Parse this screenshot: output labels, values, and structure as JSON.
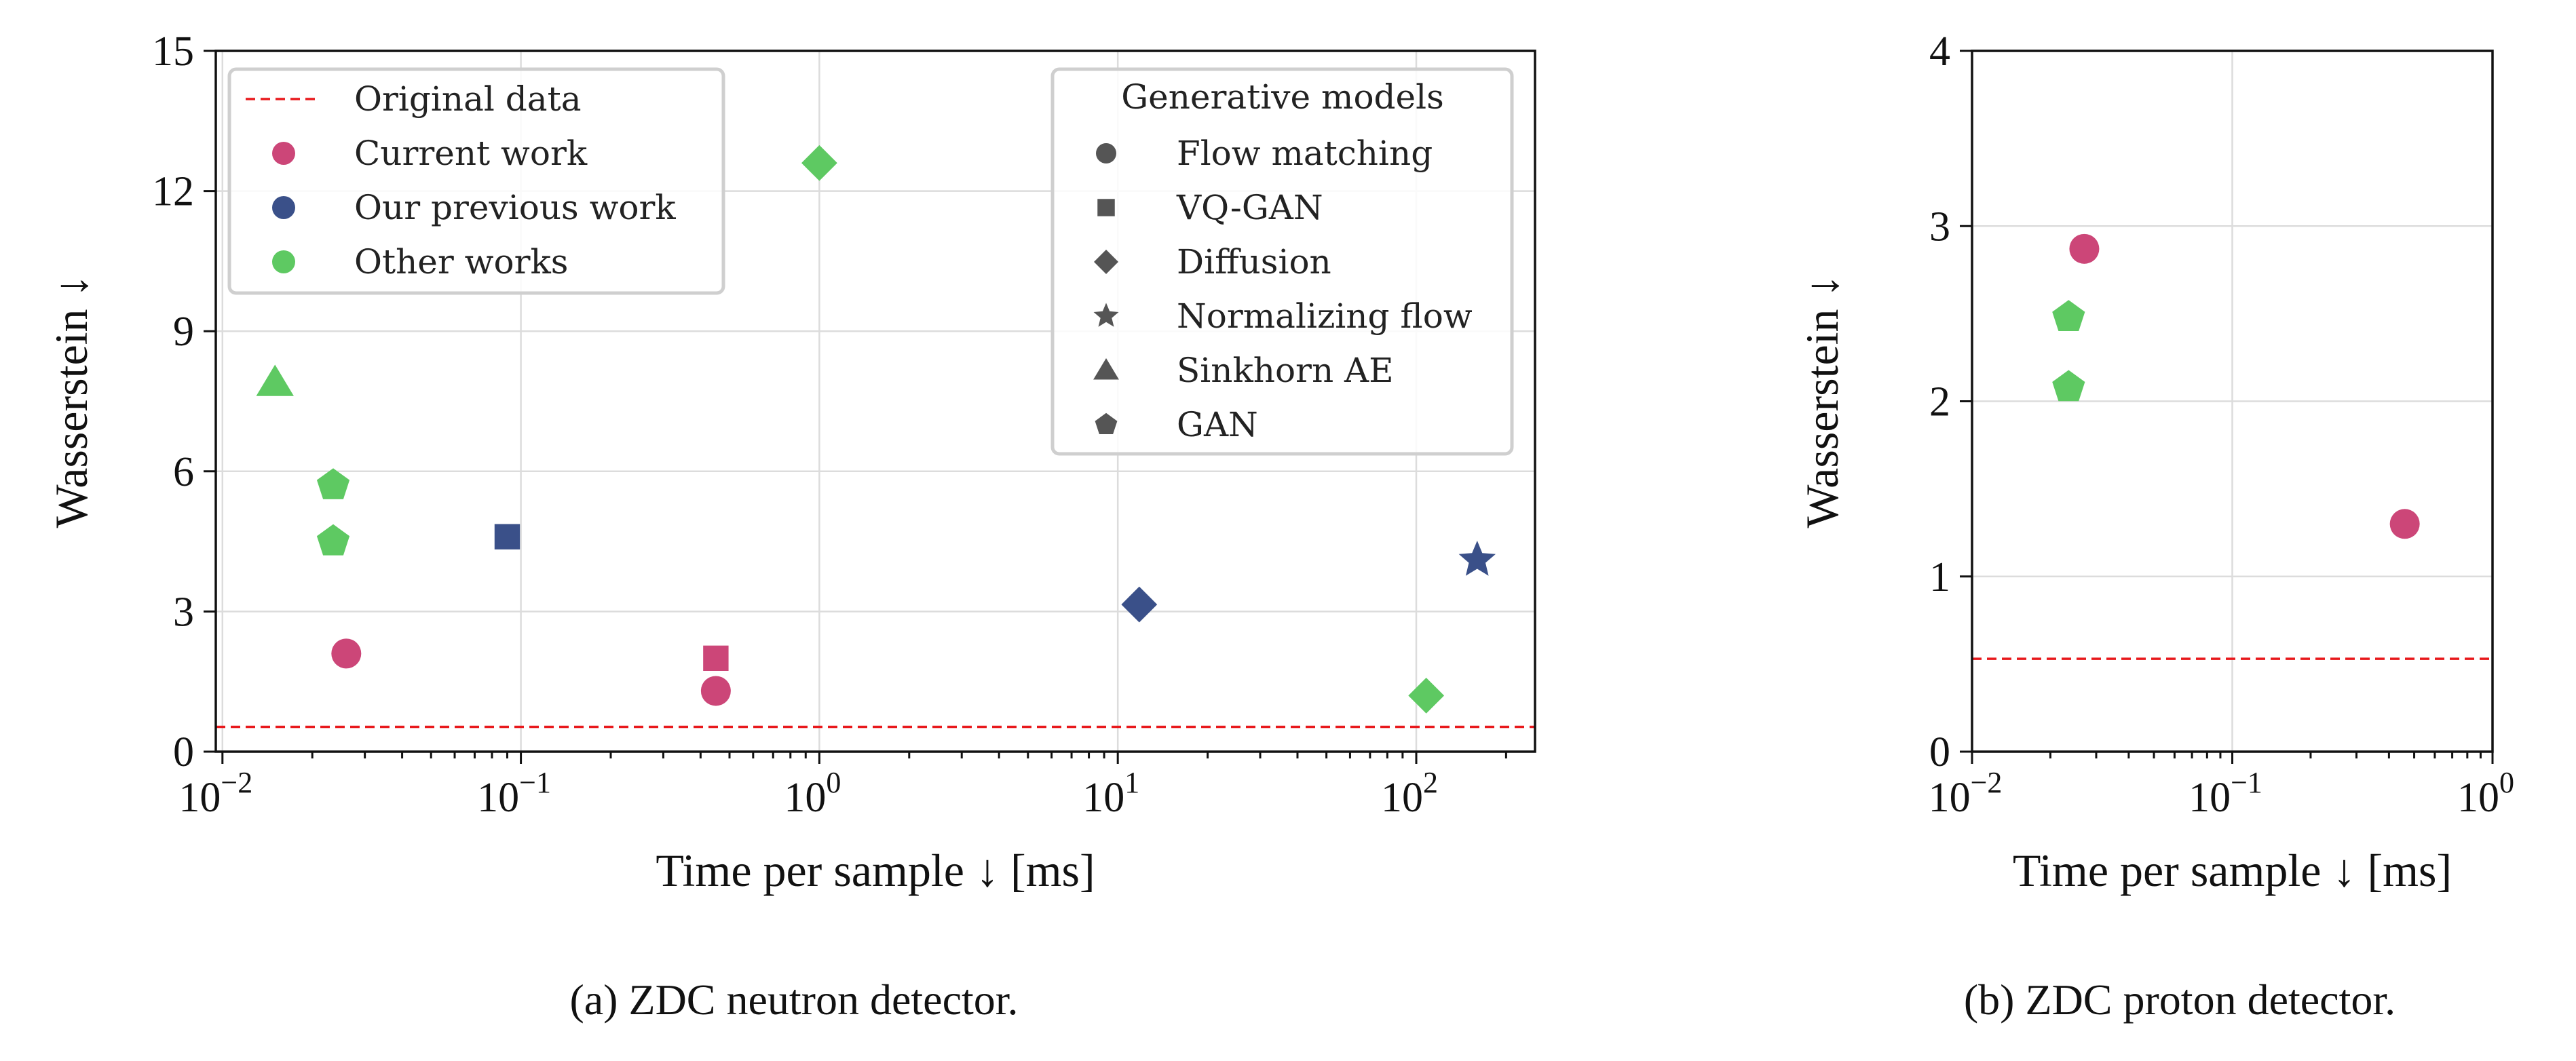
{
  "colors": {
    "current_work": "#CC4678",
    "previous_work": "#3A5089",
    "other_works": "#5EC962",
    "original_data": "#E8191C",
    "marker_neutral": "#555555"
  },
  "legend_groups": {
    "items": [
      {
        "label": "Original data",
        "marker": "dashed-line",
        "color_key": "original_data"
      },
      {
        "label": "Current work",
        "marker": "circle",
        "color_key": "current_work"
      },
      {
        "label": "Our previous work",
        "marker": "circle",
        "color_key": "previous_work"
      },
      {
        "label": "Other works",
        "marker": "circle",
        "color_key": "other_works"
      }
    ]
  },
  "legend_models": {
    "title": "Generative models",
    "items": [
      {
        "label": "Flow matching",
        "marker": "circle"
      },
      {
        "label": "VQ-GAN",
        "marker": "square"
      },
      {
        "label": "Diffusion",
        "marker": "diamond"
      },
      {
        "label": "Normalizing flow",
        "marker": "star"
      },
      {
        "label": "Sinkhorn AE",
        "marker": "triangle"
      },
      {
        "label": "GAN",
        "marker": "pentagon"
      }
    ]
  },
  "chart_data": [
    {
      "type": "scatter",
      "caption": "(a) ZDC neutron detector.",
      "xlabel": "Time per sample ↓ [ms]",
      "ylabel": "Wasserstein ↓",
      "xscale": "log",
      "xlim": [
        0.0095,
        250
      ],
      "ylim": [
        0,
        15
      ],
      "xticks": [
        {
          "value": 0.01,
          "base": "10",
          "exp": "−2"
        },
        {
          "value": 0.1,
          "base": "10",
          "exp": "−1"
        },
        {
          "value": 1,
          "base": "10",
          "exp": "0"
        },
        {
          "value": 10,
          "base": "10",
          "exp": "1"
        },
        {
          "value": 100,
          "base": "10",
          "exp": "2"
        }
      ],
      "yticks": [
        0,
        3,
        6,
        9,
        12,
        15
      ],
      "grid": true,
      "reference_line": {
        "label": "Original data",
        "y": 0.53
      },
      "points": [
        {
          "x": 0.026,
          "y": 2.1,
          "group": "Current work",
          "model": "Flow matching"
        },
        {
          "x": 0.45,
          "y": 1.3,
          "group": "Current work",
          "model": "Flow matching"
        },
        {
          "x": 0.45,
          "y": 2.0,
          "group": "Current work",
          "model": "VQ-GAN"
        },
        {
          "x": 0.09,
          "y": 4.6,
          "group": "Our previous work",
          "model": "VQ-GAN"
        },
        {
          "x": 11.8,
          "y": 3.15,
          "group": "Our previous work",
          "model": "Diffusion"
        },
        {
          "x": 160,
          "y": 4.1,
          "group": "Our previous work",
          "model": "Normalizing flow"
        },
        {
          "x": 0.015,
          "y": 7.9,
          "group": "Other works",
          "model": "Sinkhorn AE"
        },
        {
          "x": 0.0235,
          "y": 5.7,
          "group": "Other works",
          "model": "GAN"
        },
        {
          "x": 0.0235,
          "y": 4.5,
          "group": "Other works",
          "model": "GAN"
        },
        {
          "x": 1.0,
          "y": 12.6,
          "group": "Other works",
          "model": "Diffusion"
        },
        {
          "x": 108,
          "y": 1.2,
          "group": "Other works",
          "model": "Diffusion"
        }
      ]
    },
    {
      "type": "scatter",
      "caption": "(b) ZDC proton detector.",
      "xlabel": "Time per sample ↓ [ms]",
      "ylabel": "Wasserstein ↓",
      "xscale": "log",
      "xlim": [
        0.01,
        1
      ],
      "ylim": [
        0,
        4
      ],
      "xticks": [
        {
          "value": 0.01,
          "base": "10",
          "exp": "−2"
        },
        {
          "value": 0.1,
          "base": "10",
          "exp": "−1"
        },
        {
          "value": 1,
          "base": "10",
          "exp": "0"
        }
      ],
      "yticks": [
        0,
        1,
        2,
        3,
        4
      ],
      "grid": true,
      "reference_line": {
        "label": "Original data",
        "y": 0.53
      },
      "points": [
        {
          "x": 0.027,
          "y": 2.87,
          "group": "Current work",
          "model": "Flow matching"
        },
        {
          "x": 0.46,
          "y": 1.3,
          "group": "Current work",
          "model": "Flow matching"
        },
        {
          "x": 0.0235,
          "y": 2.48,
          "group": "Other works",
          "model": "GAN"
        },
        {
          "x": 0.0235,
          "y": 2.08,
          "group": "Other works",
          "model": "GAN"
        }
      ]
    }
  ]
}
